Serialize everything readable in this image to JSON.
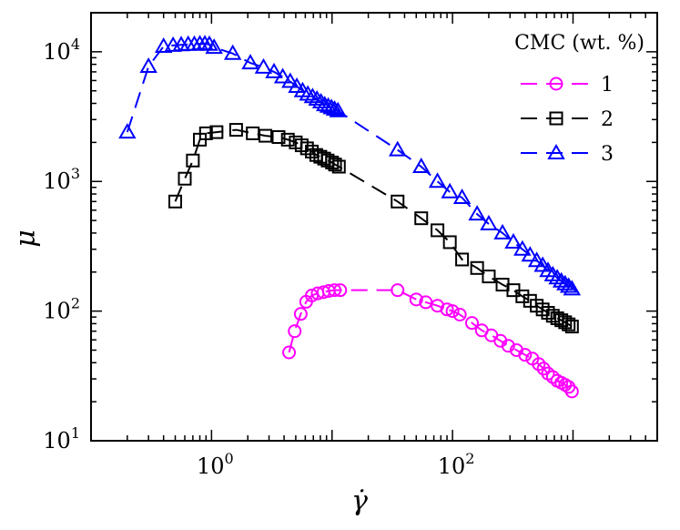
{
  "chart_data": {
    "type": "line",
    "xscale": "log",
    "yscale": "log",
    "xlabel": "γ̇",
    "ylabel": "μ",
    "xlim": [
      0.1,
      5000
    ],
    "ylim": [
      10,
      20000
    ],
    "x_tick_labels": [
      {
        "value": 1,
        "base": "10",
        "exp": "0"
      },
      {
        "value": 100,
        "base": "10",
        "exp": "2"
      }
    ],
    "y_tick_labels": [
      {
        "value": 10,
        "base": "10",
        "exp": "1"
      },
      {
        "value": 100,
        "base": "10",
        "exp": "2"
      },
      {
        "value": 1000,
        "base": "10",
        "exp": "3"
      },
      {
        "value": 10000,
        "base": "10",
        "exp": "4"
      }
    ],
    "legend": {
      "title": "CMC (wt. %)",
      "position": "top-right"
    },
    "series": [
      {
        "name": "1",
        "color": "#ff00ff",
        "marker": "circle",
        "x": [
          4.4,
          4.9,
          5.5,
          6.1,
          6.8,
          7.6,
          8.5,
          9.4,
          10.5,
          11.7,
          35,
          50,
          60,
          75,
          90,
          100,
          115,
          145,
          175,
          210,
          250,
          290,
          340,
          400,
          460,
          520,
          570,
          620,
          680,
          740,
          800,
          860,
          920,
          980
        ],
        "y": [
          48,
          70,
          95,
          118,
          132,
          137,
          140,
          143,
          145,
          145,
          145,
          123,
          117,
          110,
          103,
          100,
          94,
          81,
          71,
          65,
          59,
          54,
          50,
          46,
          43,
          39,
          36,
          33,
          31,
          29,
          28,
          27,
          26,
          24
        ]
      },
      {
        "name": "2",
        "color": "#000000",
        "marker": "square",
        "x": [
          0.5,
          0.6,
          0.7,
          0.8,
          0.9,
          1.1,
          1.6,
          2.2,
          2.8,
          3.6,
          4.3,
          5.0,
          5.6,
          6.2,
          6.8,
          7.4,
          8.0,
          8.6,
          9.2,
          10.0,
          10.6,
          11.4,
          35,
          55,
          75,
          95,
          120,
          160,
          200,
          260,
          320,
          380,
          440,
          500,
          560,
          620,
          680,
          740,
          800,
          860,
          920,
          980
        ],
        "y": [
          700,
          1050,
          1450,
          2100,
          2350,
          2400,
          2500,
          2350,
          2250,
          2200,
          2100,
          2000,
          1900,
          1800,
          1700,
          1600,
          1550,
          1500,
          1450,
          1400,
          1350,
          1300,
          700,
          520,
          420,
          340,
          250,
          215,
          185,
          160,
          145,
          130,
          120,
          110,
          103,
          97,
          92,
          88,
          85,
          82,
          79,
          76
        ]
      },
      {
        "name": "3",
        "color": "#0000ff",
        "marker": "triangle",
        "x": [
          0.2,
          0.3,
          0.4,
          0.48,
          0.56,
          0.64,
          0.72,
          0.8,
          0.88,
          0.96,
          1.05,
          1.5,
          2.1,
          2.7,
          3.3,
          3.9,
          4.5,
          5.1,
          5.7,
          6.3,
          6.9,
          7.5,
          8.1,
          8.7,
          9.3,
          9.9,
          10.5,
          11.2,
          35,
          55,
          75,
          95,
          120,
          160,
          200,
          260,
          320,
          380,
          440,
          500,
          560,
          620,
          680,
          740,
          800,
          860,
          920,
          980
        ],
        "y": [
          2400,
          7700,
          11000,
          11200,
          11300,
          11400,
          11400,
          11500,
          11500,
          11400,
          10800,
          9700,
          8200,
          7600,
          7000,
          6400,
          5900,
          5400,
          5000,
          4700,
          4500,
          4300,
          4100,
          3900,
          3800,
          3700,
          3600,
          3500,
          1750,
          1300,
          1000,
          830,
          750,
          560,
          470,
          400,
          340,
          300,
          270,
          245,
          225,
          205,
          190,
          180,
          170,
          162,
          155,
          148
        ]
      }
    ]
  }
}
